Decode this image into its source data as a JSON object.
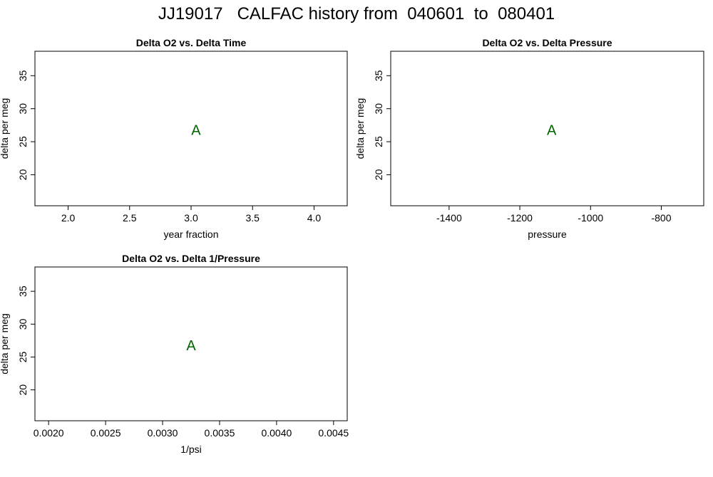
{
  "title": "JJ19017   CALFAC history from  040601  to  080401",
  "colors": {
    "point": "#006400",
    "axis": "#000000",
    "background": "#ffffff"
  },
  "chart_data": [
    {
      "type": "scatter",
      "title": "Delta O2 vs. Delta Time",
      "xlabel": "year fraction",
      "ylabel": "delta per meg",
      "xlim": [
        1.73,
        4.27
      ],
      "ylim": [
        15.3,
        38.7
      ],
      "xticks": [
        2.0,
        2.5,
        3.0,
        3.5,
        4.0
      ],
      "xtick_labels": [
        "2.0",
        "2.5",
        "3.0",
        "3.5",
        "4.0"
      ],
      "yticks": [
        20,
        25,
        30,
        35
      ],
      "ytick_labels": [
        "20",
        "25",
        "30",
        "35"
      ],
      "grid": false,
      "points": [
        {
          "x": 3.04,
          "y": 26.8,
          "label": "A"
        }
      ]
    },
    {
      "type": "scatter",
      "title": "Delta O2 vs. Delta Pressure",
      "xlabel": "pressure",
      "ylabel": "delta per meg",
      "xlim": [
        1565,
        680
      ],
      "ylim": [
        15.3,
        38.7
      ],
      "xticks": [
        1400,
        1200,
        1000,
        800
      ],
      "xtick_labels": [
        "-1400",
        "-1200",
        "-1000",
        "-800"
      ],
      "yticks": [
        20,
        25,
        30,
        35
      ],
      "ytick_labels": [
        "20",
        "25",
        "30",
        "35"
      ],
      "grid": false,
      "points": [
        {
          "x": 1110,
          "y": 26.8,
          "label": "A"
        }
      ]
    },
    {
      "type": "scatter",
      "title": "Delta O2 vs. Delta 1/Pressure",
      "xlabel": "1/psi",
      "ylabel": "delta per meg",
      "xlim": [
        0.00188,
        0.00462
      ],
      "ylim": [
        15.3,
        38.7
      ],
      "xticks": [
        0.002,
        0.0025,
        0.003,
        0.0035,
        0.004,
        0.0045
      ],
      "xtick_labels": [
        "0.0020",
        "0.0025",
        "0.0030",
        "0.0035",
        "0.0040",
        "0.0045"
      ],
      "yticks": [
        20,
        25,
        30,
        35
      ],
      "ytick_labels": [
        "20",
        "25",
        "30",
        "35"
      ],
      "grid": false,
      "points": [
        {
          "x": 0.00325,
          "y": 26.8,
          "label": "A"
        }
      ]
    }
  ]
}
